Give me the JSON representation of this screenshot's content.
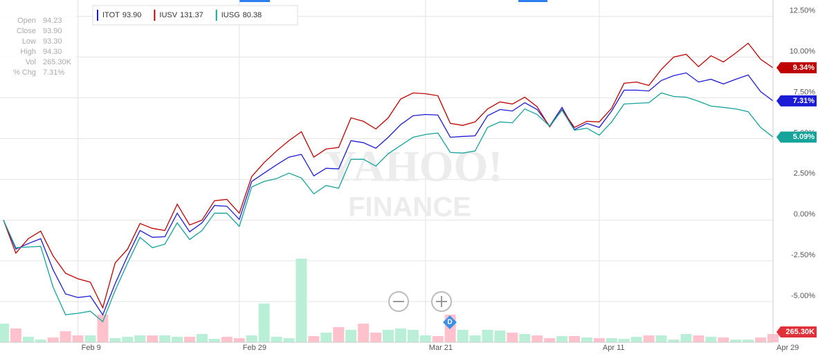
{
  "chart_data": {
    "type": "line",
    "categories": [
      null,
      null,
      null,
      null,
      null,
      null,
      "Feb 9",
      null,
      null,
      null,
      null,
      null,
      null,
      null,
      null,
      null,
      null,
      null,
      null,
      "Feb 29",
      null,
      null,
      null,
      null,
      null,
      null,
      null,
      null,
      null,
      null,
      null,
      null,
      null,
      null,
      "Mar 21",
      null,
      null,
      null,
      null,
      null,
      null,
      null,
      null,
      null,
      null,
      null,
      null,
      null,
      "Apr 11",
      null,
      null,
      null,
      null,
      null,
      null,
      null,
      null,
      null,
      null,
      null,
      null,
      null,
      "Apr 29"
    ],
    "ylim": [
      -7.5,
      13.5
    ],
    "yticks": [
      {
        "value": -5,
        "label": "-5.00%"
      },
      {
        "value": -2.5,
        "label": "-2.50%"
      },
      {
        "value": 0,
        "label": "0.00%"
      },
      {
        "value": 2.5,
        "label": "2.50%"
      },
      {
        "value": 5,
        "label": "5.00%"
      },
      {
        "value": 7.5,
        "label": "7.50%"
      },
      {
        "value": 10,
        "label": "10.00%"
      },
      {
        "value": 12.5,
        "label": "12.50%"
      }
    ],
    "grid": true,
    "series": [
      {
        "name": "ITOT",
        "last_price": "93.90",
        "color": "#1c1cd6",
        "values": [
          0,
          -1.78,
          -1.44,
          -1.14,
          -3.05,
          -4.53,
          -4.75,
          -4.66,
          -5.81,
          -3.9,
          -2.2,
          -0.64,
          -1.06,
          -1.02,
          0.42,
          -0.72,
          -0.17,
          0.89,
          0.85,
          0.04,
          2.37,
          2.88,
          3.39,
          3.86,
          4.03,
          2.71,
          3.18,
          3.14,
          4.87,
          4.75,
          4.41,
          5.08,
          5.85,
          6.4,
          6.48,
          6.44,
          5.08,
          5.13,
          5.17,
          6.4,
          6.78,
          6.69,
          7.2,
          6.78,
          5.76,
          6.91,
          5.55,
          5.93,
          5.68,
          6.69,
          7.97,
          7.97,
          7.92,
          8.56,
          8.86,
          9.03,
          8.47,
          8.64,
          8.35,
          8.64,
          8.9,
          7.88,
          7.31
        ],
        "value_labels": [
          null,
          null,
          null,
          null,
          null,
          null,
          null,
          null,
          null,
          null,
          null,
          null,
          null,
          null,
          null,
          null,
          null,
          null,
          null,
          null,
          null,
          null,
          null,
          null,
          null,
          null,
          null,
          null,
          null,
          null,
          null,
          null,
          null,
          null,
          null,
          null,
          null,
          null,
          null,
          null,
          null,
          null,
          null,
          null,
          null,
          null,
          null,
          null,
          null,
          null,
          null,
          null,
          null,
          null,
          null,
          null,
          null,
          null,
          null,
          null,
          null,
          null,
          "7.31%"
        ]
      },
      {
        "name": "IUSV",
        "last_price": "131.37",
        "color": "#c00000",
        "values": [
          0,
          -2.03,
          -1.14,
          -0.68,
          -2.2,
          -3.26,
          -3.6,
          -3.81,
          -5.38,
          -2.63,
          -1.78,
          -0.21,
          -0.51,
          -0.64,
          0.97,
          -0.3,
          0,
          1.19,
          1.27,
          0.42,
          2.67,
          3.52,
          4.24,
          4.87,
          5.42,
          3.86,
          4.36,
          4.45,
          6.27,
          6.06,
          5.59,
          6.27,
          7.42,
          7.8,
          7.75,
          7.63,
          5.93,
          5.81,
          6.02,
          6.82,
          7.25,
          7.12,
          7.54,
          6.95,
          5.72,
          6.78,
          5.68,
          6.06,
          6.02,
          6.86,
          8.39,
          8.47,
          8.26,
          9.24,
          10,
          10.17,
          9.41,
          10.08,
          9.7,
          10.25,
          10.85,
          9.87,
          9.34
        ],
        "value_labels": [
          null,
          null,
          null,
          null,
          null,
          null,
          null,
          null,
          null,
          null,
          null,
          null,
          null,
          null,
          null,
          null,
          null,
          null,
          null,
          null,
          null,
          null,
          null,
          null,
          null,
          null,
          null,
          null,
          null,
          null,
          null,
          null,
          null,
          null,
          null,
          null,
          null,
          null,
          null,
          null,
          null,
          null,
          null,
          null,
          null,
          null,
          null,
          null,
          null,
          null,
          null,
          null,
          null,
          null,
          null,
          null,
          null,
          null,
          null,
          null,
          null,
          null,
          "9.34%"
        ]
      },
      {
        "name": "IUSG",
        "last_price": "80.38",
        "color": "#15a39c",
        "values": [
          0,
          -1.69,
          -1.65,
          -1.61,
          -4.11,
          -5.81,
          -5.72,
          -5.59,
          -6.23,
          -4.32,
          -2.63,
          -1.06,
          -1.69,
          -1.48,
          -0.17,
          -1.19,
          -0.64,
          0.42,
          0.42,
          -0.38,
          2.03,
          2.37,
          2.54,
          2.88,
          2.58,
          1.61,
          2.12,
          1.95,
          3.73,
          3.73,
          3.31,
          4.07,
          4.58,
          5.08,
          5.25,
          5.34,
          4.15,
          4.11,
          4.24,
          5.68,
          6.02,
          5.97,
          6.82,
          6.48,
          5.76,
          6.74,
          5.51,
          5.64,
          5.21,
          6.02,
          7.12,
          7.16,
          7.2,
          7.8,
          7.58,
          7.54,
          7.29,
          6.99,
          6.91,
          6.82,
          6.65,
          5.68,
          5.09
        ],
        "value_labels": [
          null,
          null,
          null,
          null,
          null,
          null,
          null,
          null,
          null,
          null,
          null,
          null,
          null,
          null,
          null,
          null,
          null,
          null,
          null,
          null,
          null,
          null,
          null,
          null,
          null,
          null,
          null,
          null,
          null,
          null,
          null,
          null,
          null,
          null,
          null,
          null,
          null,
          null,
          null,
          null,
          null,
          null,
          null,
          null,
          null,
          null,
          null,
          null,
          null,
          null,
          null,
          null,
          null,
          null,
          null,
          null,
          null,
          null,
          null,
          null,
          null,
          null,
          "5.09%"
        ]
      }
    ],
    "volume": {
      "values": [
        597000,
        442000,
        177000,
        88000,
        155000,
        354000,
        221000,
        221000,
        884000,
        133000,
        177000,
        221000,
        221000,
        221000,
        177000,
        177000,
        265000,
        111000,
        177000,
        133000,
        221000,
        1238000,
        177000,
        133000,
        2674000,
        199000,
        309000,
        486000,
        398000,
        597000,
        309000,
        398000,
        442000,
        398000,
        221000,
        199000,
        884000,
        398000,
        221000,
        398000,
        376000,
        309000,
        265000,
        221000,
        133000,
        199000,
        199000,
        155000,
        133000,
        133000,
        111000,
        177000,
        221000,
        221000,
        88000,
        265000,
        221000,
        177000,
        155000,
        88000,
        88000,
        155000,
        265300
      ],
      "value_labels": [
        null,
        null,
        null,
        null,
        null,
        null,
        null,
        null,
        null,
        null,
        null,
        null,
        null,
        null,
        null,
        null,
        null,
        null,
        null,
        null,
        null,
        null,
        null,
        null,
        null,
        null,
        null,
        null,
        null,
        null,
        null,
        null,
        null,
        null,
        null,
        null,
        null,
        null,
        null,
        null,
        null,
        null,
        null,
        null,
        null,
        null,
        null,
        null,
        null,
        null,
        null,
        null,
        null,
        null,
        null,
        null,
        null,
        null,
        null,
        null,
        null,
        null,
        "265.30K"
      ]
    },
    "annotation": "D",
    "watermark": [
      "YAHOO!",
      "FINANCE"
    ],
    "info_panel": [
      [
        "Open",
        "94.23"
      ],
      [
        "Close",
        "93.90"
      ],
      [
        "Low",
        "93.30"
      ],
      [
        "High",
        "94.30"
      ],
      [
        "Vol",
        "265.30K"
      ],
      [
        "% Chg",
        "7.31%"
      ]
    ]
  }
}
